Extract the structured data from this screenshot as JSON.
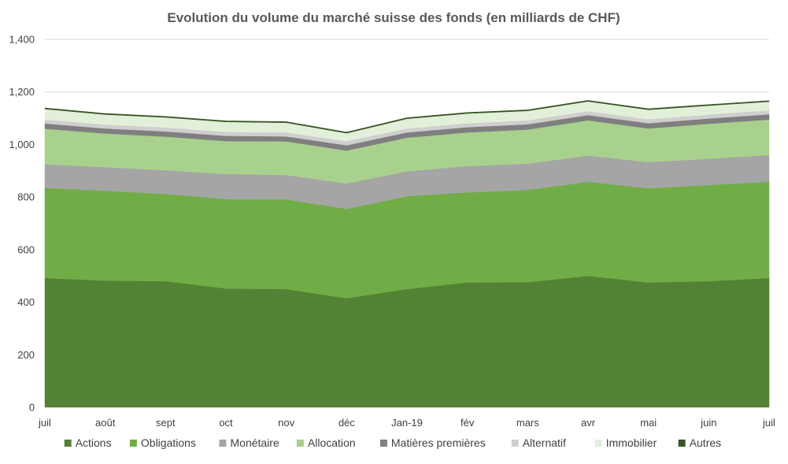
{
  "chart_data": {
    "type": "area",
    "stacked": true,
    "title": "Evolution du volume du marché suisse des fonds (en milliards de CHF)",
    "xlabel": "",
    "ylabel": "",
    "categories": [
      "juil",
      "août",
      "sept",
      "oct",
      "nov",
      "déc",
      "Jan-19",
      "fév",
      "mars",
      "avr",
      "mai",
      "juin",
      "juil"
    ],
    "ylim": [
      0,
      1400
    ],
    "yticks": [
      "0",
      "200",
      "400",
      "600",
      "800",
      "1,000",
      "1,200",
      "1,400"
    ],
    "ytick_values": [
      0,
      200,
      400,
      600,
      800,
      1000,
      1200,
      1400
    ],
    "grid": true,
    "legend_position": "bottom",
    "series": [
      {
        "name": "Actions",
        "color": "#548235",
        "values": [
          492,
          482,
          480,
          452,
          450,
          415,
          450,
          475,
          476,
          500,
          475,
          480,
          492
        ]
      },
      {
        "name": "Obligations",
        "color": "#70ad47",
        "values": [
          343,
          342,
          332,
          340,
          341,
          340,
          353,
          343,
          351,
          358,
          358,
          366,
          366
        ]
      },
      {
        "name": "Monétaire",
        "color": "#a5a5a5",
        "values": [
          90,
          90,
          90,
          96,
          93,
          97,
          95,
          100,
          100,
          100,
          100,
          100,
          102
        ]
      },
      {
        "name": "Allocation",
        "color": "#a9d18e",
        "values": [
          135,
          128,
          128,
          125,
          128,
          125,
          128,
          128,
          130,
          134,
          128,
          133,
          135
        ]
      },
      {
        "name": "Matières premières",
        "color": "#7f7f7f",
        "values": [
          20,
          19,
          20,
          20,
          19,
          20,
          20,
          20,
          20,
          20,
          20,
          20,
          20
        ]
      },
      {
        "name": "Alternatif",
        "color": "#d0cece",
        "values": [
          15,
          15,
          15,
          15,
          15,
          16,
          15,
          15,
          15,
          15,
          15,
          15,
          15
        ]
      },
      {
        "name": "Immobilier",
        "color": "#e2f0d9",
        "values": [
          40,
          38,
          38,
          38,
          37,
          30,
          37,
          37,
          36,
          37,
          36,
          34,
          33
        ]
      },
      {
        "name": "Autres",
        "color": "#375623",
        "values": [
          3,
          3,
          3,
          3,
          3,
          3,
          3,
          3,
          3,
          3,
          3,
          3,
          3
        ]
      }
    ]
  }
}
